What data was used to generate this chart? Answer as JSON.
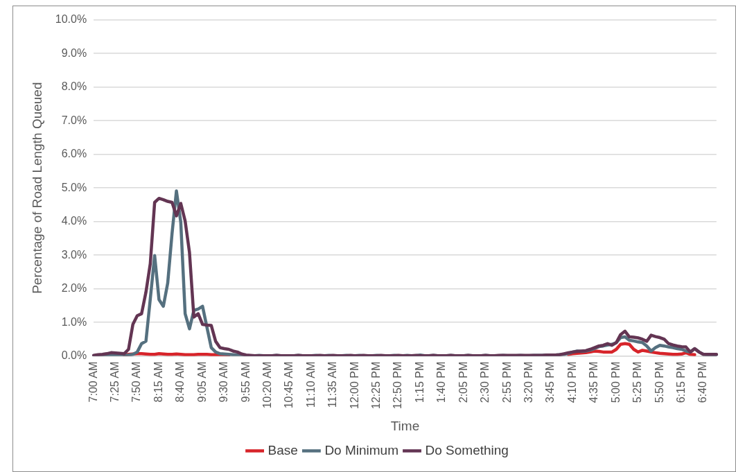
{
  "chart_data": {
    "type": "line",
    "xlabel": "Time",
    "ylabel": "Percentage of Road Length Queued",
    "categories": [
      "7:00 AM",
      null,
      null,
      null,
      null,
      "7:25 AM",
      null,
      null,
      null,
      null,
      "7:50 AM",
      null,
      null,
      null,
      null,
      "8:15 AM",
      null,
      null,
      null,
      null,
      "8:40 AM",
      null,
      null,
      null,
      null,
      "9:05 AM",
      null,
      null,
      null,
      null,
      "9:30 AM",
      null,
      null,
      null,
      null,
      "9:55 AM",
      null,
      null,
      null,
      null,
      "10:20 AM",
      null,
      null,
      null,
      null,
      "10:45 AM",
      null,
      null,
      null,
      null,
      "11:10 AM",
      null,
      null,
      null,
      null,
      "11:35 AM",
      null,
      null,
      null,
      null,
      "12:00 PM",
      null,
      null,
      null,
      null,
      "12:25 PM",
      null,
      null,
      null,
      null,
      "12:50 PM",
      null,
      null,
      null,
      null,
      "1:15 PM",
      null,
      null,
      null,
      null,
      "1:40 PM",
      null,
      null,
      null,
      null,
      "2:05 PM",
      null,
      null,
      null,
      null,
      "2:30 PM",
      null,
      null,
      null,
      null,
      "2:55 PM",
      null,
      null,
      null,
      null,
      "3:20 PM",
      null,
      null,
      null,
      null,
      "3:45 PM",
      null,
      null,
      null,
      null,
      "4:10 PM",
      null,
      null,
      null,
      null,
      "4:35 PM",
      null,
      null,
      null,
      null,
      "5:00 PM",
      null,
      null,
      null,
      null,
      "5:25 PM",
      null,
      null,
      null,
      null,
      "5:50 PM",
      null,
      null,
      null,
      null,
      "6:15 PM",
      null,
      null,
      null,
      null,
      "6:40 PM",
      null,
      null,
      null
    ],
    "series": [
      {
        "name": "Base",
        "color": "#d7242a",
        "values": [
          null,
          null,
          null,
          null,
          null,
          null,
          null,
          0.03,
          0.05,
          0.06,
          0.07,
          0.07,
          0.06,
          0.05,
          0.05,
          0.07,
          0.06,
          0.05,
          0.05,
          0.06,
          0.05,
          0.04,
          0.04,
          0.04,
          0.05,
          0.05,
          0.05,
          0.04,
          0.04,
          0.03,
          0.03,
          0.02,
          null,
          null,
          null,
          null,
          null,
          null,
          null,
          null,
          null,
          null,
          null,
          null,
          null,
          null,
          null,
          null,
          null,
          null,
          null,
          null,
          null,
          null,
          null,
          null,
          null,
          null,
          null,
          null,
          null,
          null,
          null,
          null,
          null,
          null,
          null,
          null,
          null,
          null,
          null,
          null,
          null,
          null,
          null,
          null,
          null,
          null,
          null,
          null,
          null,
          null,
          null,
          null,
          null,
          null,
          null,
          null,
          null,
          null,
          null,
          null,
          null,
          null,
          null,
          null,
          null,
          null,
          null,
          null,
          null,
          null,
          null,
          null,
          null,
          null,
          null,
          null,
          null,
          0.05,
          0.07,
          0.08,
          0.09,
          0.1,
          0.12,
          0.15,
          0.14,
          0.12,
          0.12,
          0.12,
          0.2,
          0.35,
          0.37,
          0.35,
          0.2,
          0.12,
          0.17,
          0.15,
          0.12,
          0.1,
          0.08,
          0.07,
          0.06,
          0.05,
          0.05,
          0.06,
          0.1,
          0.05,
          0.04,
          null,
          null,
          null,
          null,
          null
        ]
      },
      {
        "name": "Do Minimum",
        "color": "#55707f",
        "values": [
          0.01,
          0.02,
          0.02,
          0.03,
          0.03,
          0.03,
          0.02,
          0.02,
          0.03,
          0.05,
          0.12,
          0.37,
          0.44,
          1.7,
          2.99,
          1.68,
          1.48,
          2.17,
          3.65,
          4.91,
          3.98,
          1.26,
          0.81,
          1.36,
          1.4,
          1.48,
          0.86,
          0.25,
          0.12,
          0.07,
          0.06,
          0.05,
          0.04,
          0.03,
          0.02,
          0.01,
          0.01,
          0.01,
          0.02,
          0.01,
          0.01,
          0.01,
          0.02,
          0.01,
          0.01,
          0.01,
          0.01,
          0.02,
          0.01,
          0.01,
          0.01,
          0.02,
          0.01,
          0.01,
          0.02,
          0.01,
          0.01,
          0.01,
          0.02,
          0.01,
          0.01,
          0.02,
          0.01,
          0.01,
          0.01,
          0.02,
          0.01,
          0.01,
          0.01,
          0.02,
          0.01,
          0.01,
          0.02,
          0.01,
          0.01,
          0.03,
          0.01,
          0.01,
          0.02,
          0.01,
          0.01,
          0.01,
          0.02,
          0.01,
          0.01,
          0.01,
          0.02,
          0.01,
          0.01,
          0.01,
          0.02,
          0.01,
          0.01,
          0.01,
          0.02,
          0.01,
          0.01,
          0.01,
          0.02,
          0.01,
          0.01,
          0.02,
          0.02,
          0.02,
          0.03,
          0.03,
          0.03,
          0.04,
          0.05,
          0.08,
          0.12,
          0.15,
          0.14,
          0.15,
          0.18,
          0.22,
          0.28,
          0.3,
          0.33,
          0.35,
          0.4,
          0.55,
          0.57,
          0.47,
          0.45,
          0.42,
          0.4,
          0.3,
          0.15,
          0.25,
          0.32,
          0.3,
          0.27,
          0.25,
          0.22,
          0.2,
          0.15,
          0.12,
          0.22,
          0.12,
          0.05,
          0.04,
          0.04,
          0.04
        ]
      },
      {
        "name": "Do Something",
        "color": "#633553",
        "values": [
          0.02,
          0.04,
          0.05,
          0.07,
          0.1,
          0.09,
          0.08,
          0.07,
          0.2,
          0.94,
          1.2,
          1.26,
          1.9,
          2.75,
          4.57,
          4.69,
          4.65,
          4.6,
          4.57,
          4.17,
          4.54,
          4.02,
          3.08,
          1.16,
          1.26,
          0.94,
          0.92,
          0.91,
          0.44,
          0.25,
          0.22,
          0.2,
          0.15,
          0.12,
          0.06,
          0.03,
          0.02,
          0.01,
          0.01,
          0.01,
          0.01,
          0.01,
          0.02,
          0.01,
          0.01,
          0.01,
          0.01,
          0.02,
          0.01,
          0.01,
          0.01,
          0.01,
          0.02,
          0.01,
          0.01,
          0.02,
          0.01,
          0.01,
          0.01,
          0.02,
          0.01,
          0.01,
          0.02,
          0.01,
          0.01,
          0.01,
          0.02,
          0.01,
          0.01,
          0.01,
          0.02,
          0.01,
          0.01,
          0.01,
          0.02,
          0.01,
          0.01,
          0.01,
          0.02,
          0.01,
          0.01,
          0.01,
          0.02,
          0.01,
          0.01,
          0.01,
          0.02,
          0.01,
          0.01,
          0.01,
          0.02,
          0.01,
          0.01,
          0.02,
          0.02,
          0.02,
          0.02,
          0.02,
          0.02,
          0.02,
          0.02,
          0.02,
          0.02,
          0.02,
          0.03,
          0.03,
          0.03,
          0.04,
          0.07,
          0.1,
          0.12,
          0.14,
          0.15,
          0.16,
          0.2,
          0.25,
          0.3,
          0.32,
          0.37,
          0.32,
          0.4,
          0.64,
          0.74,
          0.57,
          0.56,
          0.54,
          0.5,
          0.44,
          0.62,
          0.58,
          0.55,
          0.5,
          0.37,
          0.33,
          0.3,
          0.28,
          0.27,
          0.12,
          0.22,
          0.12,
          0.05,
          0.05,
          0.05,
          0.05
        ]
      }
    ],
    "ylim": [
      0,
      10
    ],
    "yticks": [
      {
        "value": 0,
        "label": "0.0%"
      },
      {
        "value": 1,
        "label": "1.0%"
      },
      {
        "value": 2,
        "label": "2.0%"
      },
      {
        "value": 3,
        "label": "3.0%"
      },
      {
        "value": 4,
        "label": "4.0%"
      },
      {
        "value": 5,
        "label": "5.0%"
      },
      {
        "value": 6,
        "label": "6.0%"
      },
      {
        "value": 7,
        "label": "7.0%"
      },
      {
        "value": 8,
        "label": "8.0%"
      },
      {
        "value": 9,
        "label": "9.0%"
      },
      {
        "value": 10,
        "label": "10.0%"
      }
    ],
    "grid": "y",
    "legend": "bottom",
    "marker": "none",
    "line_style": "solid"
  }
}
